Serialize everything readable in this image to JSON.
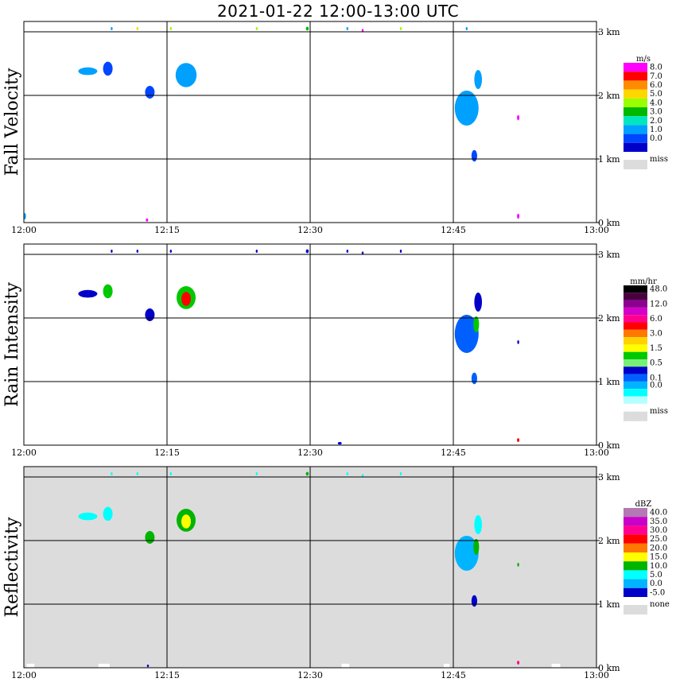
{
  "title": "2021-01-22   12:00-13:00 UTC",
  "x_ticks": [
    "12:00",
    "12:15",
    "12:30",
    "12:45",
    "13:00"
  ],
  "y_ticks": [
    "0 km",
    "1 km",
    "2 km",
    "3 km"
  ],
  "chart_data": [
    {
      "type": "heatmap",
      "panel": "fall-velocity",
      "ylabel": "Fall Velocity",
      "xlim": [
        0,
        60
      ],
      "xunit": "minutes after 12:00 UTC",
      "ylim": [
        0,
        3.25
      ],
      "yunit": "km",
      "grid": true,
      "background": "#ffffff",
      "colorbar": {
        "unit": "m/s",
        "labels": [
          "8.0",
          "7.0",
          "6.0",
          "5.0",
          "4.0",
          "3.0",
          "2.0",
          "1.0",
          "0.0"
        ],
        "colors": [
          "#ff00ff",
          "#ff0000",
          "#ff8c00",
          "#ffd700",
          "#9aff00",
          "#00b800",
          "#00e6c0",
          "#00a0ff",
          "#0046ff",
          "#0000c8"
        ],
        "missing_label": "miss",
        "missing_color": "#dcdcdc"
      },
      "echoes": [
        {
          "t": 6.7,
          "h": 2.38,
          "w": 2.0,
          "d": 0.12,
          "value": 1.0
        },
        {
          "t": 8.8,
          "h": 2.42,
          "w": 1.0,
          "d": 0.22,
          "value": 0.5
        },
        {
          "t": 13.2,
          "h": 2.05,
          "w": 1.0,
          "d": 0.2,
          "value": 0.6
        },
        {
          "t": 17.0,
          "h": 2.32,
          "w": 2.2,
          "d": 0.38,
          "value": 1.2
        },
        {
          "t": 46.4,
          "h": 1.8,
          "w": 2.5,
          "d": 0.55,
          "value": 1.0
        },
        {
          "t": 47.6,
          "h": 2.25,
          "w": 0.8,
          "d": 0.3,
          "value": 1.1
        },
        {
          "t": 47.2,
          "h": 1.05,
          "w": 0.6,
          "d": 0.18,
          "value": 0.6
        },
        {
          "t": 51.8,
          "h": 1.65,
          "w": 0.25,
          "d": 0.08,
          "value": 8.0
        },
        {
          "t": 51.8,
          "h": 0.1,
          "w": 0.25,
          "d": 0.08,
          "value": 8.0
        },
        {
          "t": 12.9,
          "h": 0.04,
          "w": 0.25,
          "d": 0.05,
          "value": 8.0
        },
        {
          "t": 0.1,
          "h": 0.1,
          "w": 0.25,
          "d": 0.1,
          "value": 1.2
        },
        {
          "t": 9.2,
          "h": 3.05,
          "w": 0.2,
          "d": 0.05,
          "value": 1.0
        },
        {
          "t": 11.9,
          "h": 3.05,
          "w": 0.2,
          "d": 0.05,
          "value": 5.0
        },
        {
          "t": 15.4,
          "h": 3.05,
          "w": 0.2,
          "d": 0.05,
          "value": 4.0
        },
        {
          "t": 24.4,
          "h": 3.05,
          "w": 0.2,
          "d": 0.05,
          "value": 4.0
        },
        {
          "t": 29.7,
          "h": 3.05,
          "w": 0.3,
          "d": 0.06,
          "value": 3.5
        },
        {
          "t": 33.9,
          "h": 3.05,
          "w": 0.2,
          "d": 0.05,
          "value": 1.0
        },
        {
          "t": 35.5,
          "h": 3.02,
          "w": 0.2,
          "d": 0.05,
          "value": 8.0
        },
        {
          "t": 39.5,
          "h": 3.05,
          "w": 0.2,
          "d": 0.05,
          "value": 4.0
        },
        {
          "t": 46.4,
          "h": 3.05,
          "w": 0.2,
          "d": 0.05,
          "value": 1.0
        }
      ]
    },
    {
      "type": "heatmap",
      "panel": "rain-intensity",
      "ylabel": "Rain Intensity",
      "xlim": [
        0,
        60
      ],
      "xunit": "minutes after 12:00 UTC",
      "ylim": [
        0,
        3.25
      ],
      "yunit": "km",
      "grid": true,
      "background": "#ffffff",
      "colorbar": {
        "unit": "mm/hr",
        "labels": [
          "48.0",
          "12.0",
          "6.0",
          "3.0",
          "1.5",
          "0.5",
          "0.1",
          "0.0"
        ],
        "label_slots": [
          0,
          2,
          4,
          6,
          8,
          10,
          12,
          13
        ],
        "colors": [
          "#000000",
          "#4a0040",
          "#8c0090",
          "#d200c8",
          "#ff0090",
          "#ff0000",
          "#ff7800",
          "#ffd200",
          "#ffff00",
          "#00c800",
          "#78f078",
          "#0000c8",
          "#0060ff",
          "#00b4ff",
          "#00ffff",
          "#b4ffff"
        ],
        "missing_label": "miss",
        "missing_color": "#dcdcdc"
      },
      "echoes": [
        {
          "t": 6.7,
          "h": 2.38,
          "w": 2.0,
          "d": 0.12,
          "value": 0.3
        },
        {
          "t": 8.8,
          "h": 2.42,
          "w": 1.0,
          "d": 0.22,
          "value": 0.5
        },
        {
          "t": 13.2,
          "h": 2.05,
          "w": 1.0,
          "d": 0.2,
          "value": 0.4
        },
        {
          "t": 17.0,
          "h": 2.32,
          "w": 2.0,
          "d": 0.36,
          "value": 0.8
        },
        {
          "t": 17.0,
          "h": 2.3,
          "w": 1.0,
          "d": 0.22,
          "value": 3.0
        },
        {
          "t": 46.4,
          "h": 1.75,
          "w": 2.5,
          "d": 0.6,
          "value": 0.08
        },
        {
          "t": 47.6,
          "h": 2.25,
          "w": 0.8,
          "d": 0.3,
          "value": 0.2
        },
        {
          "t": 47.4,
          "h": 1.9,
          "w": 0.6,
          "d": 0.25,
          "value": 0.8
        },
        {
          "t": 47.2,
          "h": 1.05,
          "w": 0.6,
          "d": 0.18,
          "value": 0.08
        },
        {
          "t": 51.8,
          "h": 1.62,
          "w": 0.2,
          "d": 0.06,
          "value": 0.1
        },
        {
          "t": 51.8,
          "h": 0.08,
          "w": 0.25,
          "d": 0.06,
          "value": 3.0
        },
        {
          "t": 33.1,
          "h": 0.03,
          "w": 0.4,
          "d": 0.04,
          "value": 0.1
        },
        {
          "t": 9.2,
          "h": 3.05,
          "w": 0.2,
          "d": 0.05,
          "value": 0.1
        },
        {
          "t": 11.9,
          "h": 3.05,
          "w": 0.2,
          "d": 0.05,
          "value": 0.1
        },
        {
          "t": 15.4,
          "h": 3.05,
          "w": 0.2,
          "d": 0.05,
          "value": 0.1
        },
        {
          "t": 24.4,
          "h": 3.05,
          "w": 0.2,
          "d": 0.05,
          "value": 0.1
        },
        {
          "t": 29.7,
          "h": 3.05,
          "w": 0.3,
          "d": 0.06,
          "value": 0.2
        },
        {
          "t": 33.9,
          "h": 3.05,
          "w": 0.2,
          "d": 0.05,
          "value": 0.1
        },
        {
          "t": 35.5,
          "h": 3.02,
          "w": 0.2,
          "d": 0.05,
          "value": 0.1
        },
        {
          "t": 39.5,
          "h": 3.05,
          "w": 0.2,
          "d": 0.05,
          "value": 0.1
        }
      ]
    },
    {
      "type": "heatmap",
      "panel": "reflectivity",
      "ylabel": "Reflectivity",
      "xlim": [
        0,
        60
      ],
      "xunit": "minutes after 12:00 UTC",
      "ylim": [
        0,
        3.25
      ],
      "yunit": "km",
      "grid": true,
      "background": "#dcdcdc",
      "colorbar": {
        "unit": "dBZ",
        "labels": [
          "40.0",
          "35.0",
          "30.0",
          "25.0",
          "20.0",
          "15.0",
          "10.0",
          "5.0",
          "0.0",
          "-5.0"
        ],
        "colors": [
          "#b478b4",
          "#c800c8",
          "#ff0090",
          "#ff0000",
          "#ff7800",
          "#ffff00",
          "#00b400",
          "#00ffff",
          "#00b4ff",
          "#0000c8"
        ],
        "missing_label": "none",
        "missing_color": "#dcdcdc"
      },
      "echoes": [
        {
          "t": 6.7,
          "h": 2.38,
          "w": 2.0,
          "d": 0.12,
          "value": 8
        },
        {
          "t": 8.8,
          "h": 2.42,
          "w": 1.0,
          "d": 0.22,
          "value": 9
        },
        {
          "t": 13.2,
          "h": 2.05,
          "w": 1.0,
          "d": 0.2,
          "value": 11
        },
        {
          "t": 17.0,
          "h": 2.32,
          "w": 2.0,
          "d": 0.36,
          "value": 12
        },
        {
          "t": 17.0,
          "h": 2.3,
          "w": 1.0,
          "d": 0.22,
          "value": 17
        },
        {
          "t": 46.4,
          "h": 1.8,
          "w": 2.5,
          "d": 0.55,
          "value": 4
        },
        {
          "t": 47.6,
          "h": 2.25,
          "w": 0.8,
          "d": 0.3,
          "value": 6
        },
        {
          "t": 47.4,
          "h": 1.9,
          "w": 0.6,
          "d": 0.25,
          "value": 11
        },
        {
          "t": 47.2,
          "h": 1.05,
          "w": 0.6,
          "d": 0.18,
          "value": -2
        },
        {
          "t": 51.8,
          "h": 1.62,
          "w": 0.2,
          "d": 0.06,
          "value": 10
        },
        {
          "t": 51.8,
          "h": 0.08,
          "w": 0.25,
          "d": 0.06,
          "value": 30
        },
        {
          "t": 13.0,
          "h": 0.03,
          "w": 0.2,
          "d": 0.04,
          "value": -4
        },
        {
          "t": 9.2,
          "h": 3.05,
          "w": 0.2,
          "d": 0.05,
          "value": 8
        },
        {
          "t": 11.9,
          "h": 3.05,
          "w": 0.2,
          "d": 0.05,
          "value": 8
        },
        {
          "t": 15.4,
          "h": 3.05,
          "w": 0.2,
          "d": 0.05,
          "value": 8
        },
        {
          "t": 24.4,
          "h": 3.05,
          "w": 0.2,
          "d": 0.05,
          "value": 8
        },
        {
          "t": 29.7,
          "h": 3.05,
          "w": 0.3,
          "d": 0.06,
          "value": 12
        },
        {
          "t": 33.9,
          "h": 3.05,
          "w": 0.2,
          "d": 0.05,
          "value": 8
        },
        {
          "t": 35.5,
          "h": 3.02,
          "w": 0.2,
          "d": 0.05,
          "value": 8
        },
        {
          "t": 39.5,
          "h": 3.05,
          "w": 0.2,
          "d": 0.05,
          "value": 8
        }
      ],
      "ground_gaps": [
        {
          "t": 0.3,
          "w": 0.8
        },
        {
          "t": 7.8,
          "w": 1.2
        },
        {
          "t": 33.3,
          "w": 0.8
        },
        {
          "t": 44.0,
          "w": 0.6
        },
        {
          "t": 55.3,
          "w": 0.9
        }
      ]
    }
  ]
}
